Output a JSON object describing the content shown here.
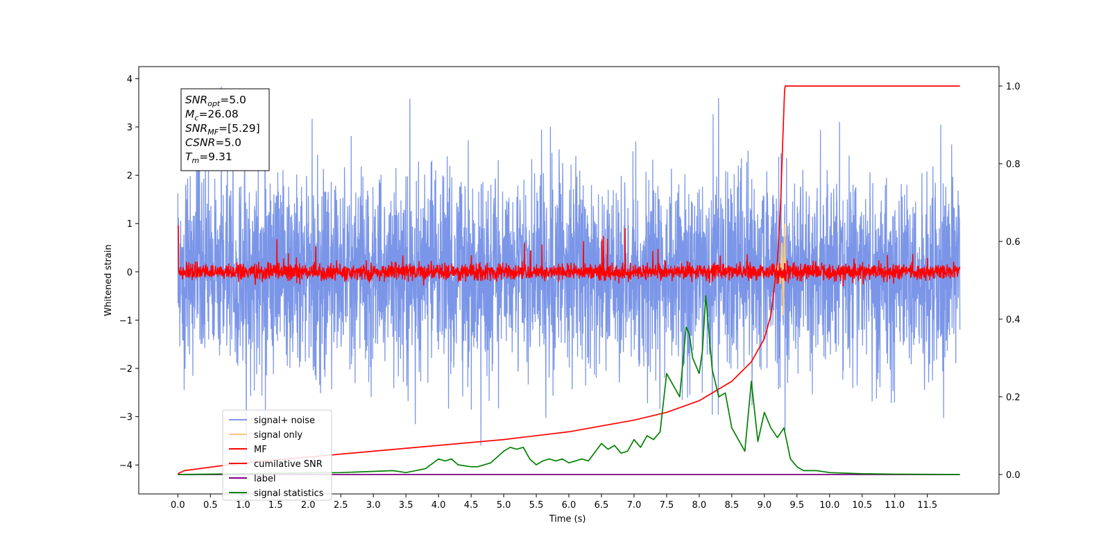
{
  "chart_data": {
    "type": "line",
    "xlabel": "Time (s)",
    "ylabel": "Whitened strain",
    "xlim": [
      -0.6,
      12.6
    ],
    "ylim": [
      -4.6,
      4.25
    ],
    "ylim_right": [
      -0.05,
      1.05
    ],
    "x_ticks": [
      "0.0",
      "0.5",
      "1.0",
      "1.5",
      "2.0",
      "2.5",
      "3.0",
      "3.5",
      "4.0",
      "4.5",
      "5.0",
      "5.5",
      "6.0",
      "6.5",
      "7.0",
      "7.5",
      "8.0",
      "8.5",
      "9.0",
      "9.5",
      "10.0",
      "10.5",
      "11.0",
      "11.5"
    ],
    "y_ticks": [
      "4",
      "3",
      "2",
      "1",
      "0",
      "−1",
      "−2",
      "−3",
      "−4"
    ],
    "y_ticks_right": [
      "1.0",
      "0.8",
      "0.6",
      "0.4",
      "0.2",
      "0.0"
    ],
    "grid": false,
    "legend_position": "lower-left",
    "annotation": [
      {
        "main": "SNR",
        "sub": "opt",
        "value": "=5.0"
      },
      {
        "main": "M",
        "sub": "c",
        "value": "=26.08"
      },
      {
        "main": "SNR",
        "sub": "MF",
        "value": "=[5.29]"
      },
      {
        "main": "CSNR",
        "sub": "",
        "value": "=5.0"
      },
      {
        "main": "T",
        "sub": "m",
        "value": "=9.31"
      }
    ],
    "series": [
      {
        "name": "signal+ noise",
        "color": "#7b96e8",
        "axis": "left",
        "x_range": [
          0.0,
          12.0
        ],
        "mean": 0.0,
        "std": 1.0,
        "y_range": [
          -4.1,
          3.85
        ]
      },
      {
        "name": "signal only",
        "color": "#f5c88a",
        "axis": "left",
        "x": [
          9.15,
          9.2,
          9.24,
          9.27,
          9.29,
          9.31,
          9.32
        ],
        "y": [
          0.0,
          0.15,
          -0.25,
          0.6,
          -0.9,
          1.0,
          0.0
        ]
      },
      {
        "name": "MF",
        "color": "#ff0000",
        "axis": "left",
        "x_range": [
          0.0,
          12.0
        ],
        "mean": 0.0,
        "y_range": [
          -0.3,
          1.0
        ]
      },
      {
        "name": "cumilative SNR",
        "color": "#ff0000",
        "axis": "right",
        "x": [
          0.0,
          0.1,
          1.0,
          2.0,
          3.0,
          4.0,
          5.0,
          6.0,
          7.0,
          7.5,
          8.0,
          8.5,
          8.8,
          9.0,
          9.1,
          9.2,
          9.25,
          9.28,
          9.31,
          9.32,
          12.0
        ],
        "y": [
          0.002,
          0.01,
          0.03,
          0.045,
          0.06,
          0.075,
          0.09,
          0.11,
          0.14,
          0.16,
          0.19,
          0.24,
          0.29,
          0.35,
          0.41,
          0.55,
          0.7,
          0.85,
          0.99,
          1.0,
          1.0
        ]
      },
      {
        "name": "label",
        "color": "#800080",
        "axis": "right",
        "x": [
          0.0,
          12.0
        ],
        "y": [
          0.0,
          0.0
        ]
      },
      {
        "name": "signal statistics",
        "color": "#008000",
        "axis": "right",
        "x": [
          0.0,
          1.0,
          2.0,
          2.5,
          3.0,
          3.3,
          3.5,
          3.8,
          4.0,
          4.1,
          4.2,
          4.3,
          4.5,
          4.6,
          4.8,
          5.0,
          5.1,
          5.2,
          5.3,
          5.4,
          5.5,
          5.6,
          5.7,
          5.8,
          5.9,
          6.0,
          6.1,
          6.2,
          6.3,
          6.5,
          6.6,
          6.7,
          6.8,
          6.9,
          7.0,
          7.1,
          7.2,
          7.3,
          7.4,
          7.5,
          7.6,
          7.7,
          7.8,
          7.85,
          7.9,
          8.0,
          8.05,
          8.1,
          8.2,
          8.3,
          8.4,
          8.5,
          8.6,
          8.7,
          8.8,
          8.9,
          9.0,
          9.1,
          9.2,
          9.3,
          9.4,
          9.5,
          9.6,
          9.8,
          10.0,
          10.5,
          11.0,
          12.0
        ],
        "y": [
          0.0,
          0.002,
          0.004,
          0.005,
          0.008,
          0.01,
          0.005,
          0.015,
          0.04,
          0.035,
          0.04,
          0.025,
          0.02,
          0.02,
          0.03,
          0.06,
          0.07,
          0.065,
          0.07,
          0.04,
          0.025,
          0.035,
          0.04,
          0.035,
          0.04,
          0.03,
          0.035,
          0.04,
          0.035,
          0.08,
          0.065,
          0.075,
          0.055,
          0.06,
          0.09,
          0.07,
          0.1,
          0.09,
          0.11,
          0.26,
          0.23,
          0.2,
          0.38,
          0.36,
          0.3,
          0.26,
          0.32,
          0.46,
          0.27,
          0.2,
          0.21,
          0.12,
          0.09,
          0.06,
          0.24,
          0.085,
          0.16,
          0.12,
          0.095,
          0.12,
          0.04,
          0.02,
          0.01,
          0.01,
          0.005,
          0.002,
          0.001,
          0.0
        ]
      }
    ]
  }
}
